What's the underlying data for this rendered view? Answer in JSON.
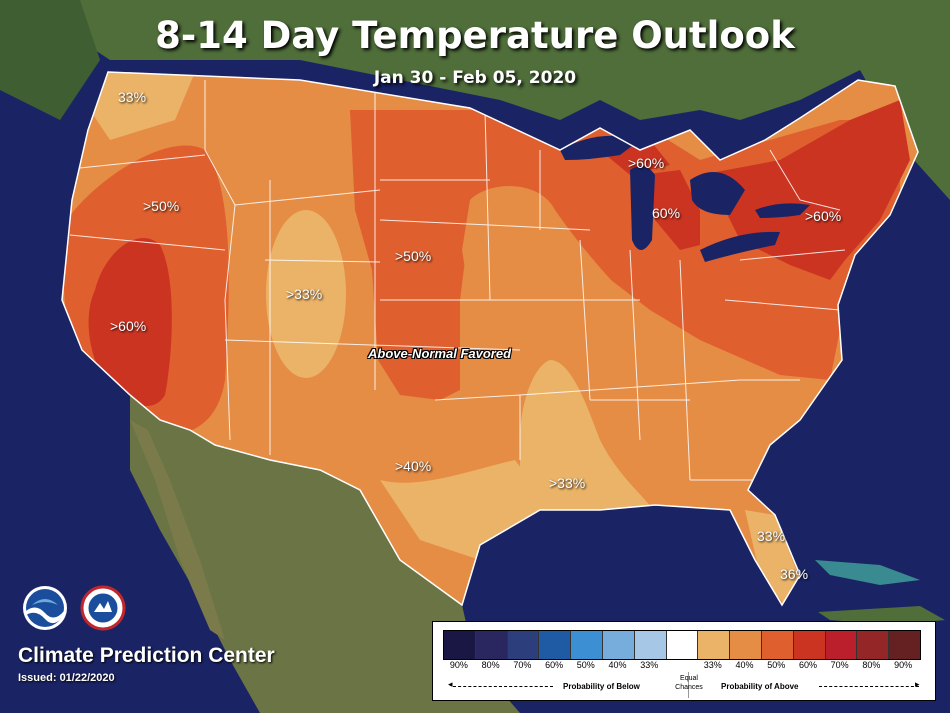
{
  "header": {
    "title": "8-14 Day Temperature Outlook",
    "subtitle": "Jan 30 - Feb 05, 2020"
  },
  "map_labels": {
    "pacific_nw": "33%",
    "great_basin_north": ">50%",
    "california": ">60%",
    "colorado": ">33%",
    "plains": ">50%",
    "texas": ">40%",
    "louisiana": ">33%",
    "michigan_north": ">60%",
    "michigan": "60%",
    "northeast": ">60%",
    "florida_north": "33%",
    "florida_south": "36%",
    "favored": "Above-Normal Favored"
  },
  "footer": {
    "center_name": "Climate Prediction Center",
    "issued": "Issued: 01/22/2020",
    "noaa_logo_text": "NOAA",
    "nws_logo_text": "NATIONAL WEATHER SERVICE"
  },
  "legend": {
    "colors": [
      "#1b1745",
      "#2a2660",
      "#2c3f7c",
      "#1f5aa5",
      "#3c8fd2",
      "#77addc",
      "#a7c7e6",
      "#ffffff",
      "#ebb368",
      "#e58c45",
      "#df5f2e",
      "#cc3422",
      "#bb1f2c",
      "#942627",
      "#652021"
    ],
    "ticks": [
      "90%",
      "80%",
      "70%",
      "60%",
      "50%",
      "40%",
      "33%",
      "",
      "33%",
      "40%",
      "50%",
      "60%",
      "70%",
      "80%",
      "90%"
    ],
    "equal_chances": "Equal Chances",
    "below_label": "Probability of Below",
    "above_label": "Probability of Above"
  },
  "colors": {
    "ocean": "#1a2465",
    "land": "#4f6e3a",
    "cat_33": "#ebb368",
    "cat_40": "#e58c45",
    "cat_50": "#df5f2e",
    "cat_60": "#cc3422"
  }
}
